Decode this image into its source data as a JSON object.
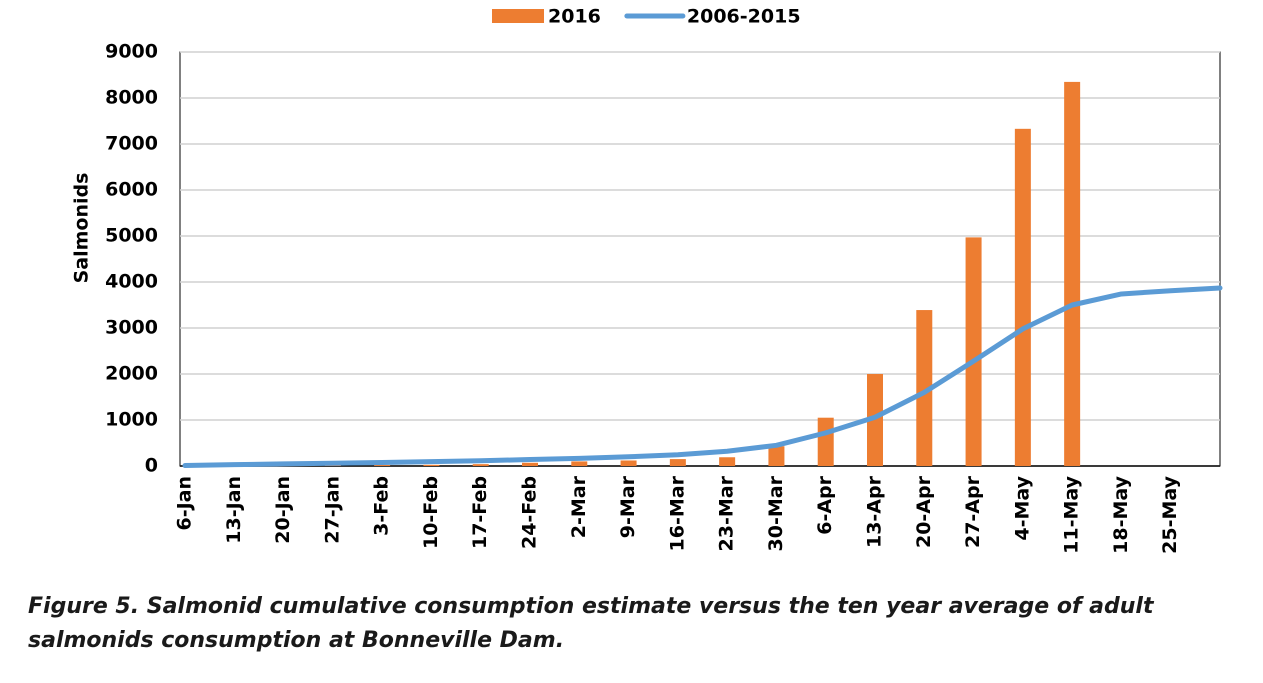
{
  "chart_data": {
    "type": "bar_line",
    "y_label": "Salmonids",
    "caption": "Figure 5.  Salmonid cumulative consumption estimate versus the ten year average of adult salmonids consumption at Bonneville Dam.",
    "categories": [
      "6-Jan",
      "13-Jan",
      "20-Jan",
      "27-Jan",
      "3-Feb",
      "10-Feb",
      "17-Feb",
      "24-Feb",
      "2-Mar",
      "9-Mar",
      "16-Mar",
      "23-Mar",
      "30-Mar",
      "6-Apr",
      "13-Apr",
      "20-Apr",
      "27-Apr",
      "4-May",
      "11-May",
      "18-May",
      "25-May",
      null
    ],
    "series": [
      {
        "name": "2016",
        "type": "bar",
        "color": "#ed7d31",
        "values": [
          0,
          5,
          10,
          15,
          20,
          25,
          40,
          70,
          100,
          120,
          150,
          190,
          430,
          1050,
          2000,
          3390,
          4970,
          7330,
          8350,
          null,
          null,
          null
        ]
      },
      {
        "name": "2006-2015",
        "type": "line",
        "color": "#5b9bd5",
        "values": [
          10,
          30,
          45,
          60,
          75,
          95,
          115,
          140,
          165,
          200,
          245,
          320,
          450,
          720,
          1060,
          1600,
          2280,
          2980,
          3500,
          3740,
          3810,
          3870
        ]
      }
    ],
    "ylim": [
      0,
      9000
    ],
    "yticks": [
      0,
      1000,
      2000,
      3000,
      4000,
      5000,
      6000,
      7000,
      8000,
      9000
    ],
    "grid": true,
    "legend": "top"
  }
}
